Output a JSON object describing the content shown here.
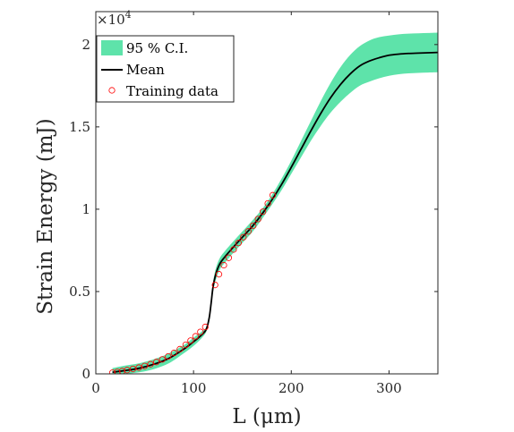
{
  "chart_data": {
    "type": "line",
    "xlabel": "L (μm)",
    "ylabel": "Strain Energy (mJ)",
    "xlim": [
      0,
      350
    ],
    "ylim": [
      0,
      22000
    ],
    "x_ticks": [
      0,
      100,
      200,
      300
    ],
    "x_tick_labels": [
      "0",
      "100",
      "200",
      "300"
    ],
    "y_ticks": [
      0,
      5000,
      10000,
      15000,
      20000
    ],
    "y_tick_labels": [
      "0",
      "0.5",
      "1",
      "1.5",
      "2"
    ],
    "y_exponent_label": "×10",
    "y_exponent_power": "4",
    "grid": false,
    "legend_position": "top-left",
    "legend": {
      "ci_label": "95 % C.I.",
      "mean_label": "Mean",
      "training_label": "Training data"
    },
    "colors": {
      "ci_fill": "#5ee3aa",
      "mean_line": "#000000",
      "training_marker": "#ff0000",
      "axis": "#262626"
    },
    "series": [
      {
        "name": "Mean",
        "x": [
          17,
          30,
          45,
          60,
          75,
          90,
          100,
          108,
          113,
          116,
          118,
          120,
          123,
          127,
          132,
          140,
          150,
          160,
          170,
          180,
          190,
          200,
          210,
          220,
          230,
          240,
          250,
          260,
          270,
          280,
          290,
          300,
          310,
          320,
          330,
          340,
          350
        ],
        "y": [
          100,
          200,
          350,
          600,
          950,
          1500,
          1950,
          2350,
          2700,
          3400,
          4300,
          5300,
          6100,
          6700,
          7100,
          7650,
          8300,
          8950,
          9700,
          10550,
          11500,
          12550,
          13650,
          14750,
          15800,
          16750,
          17550,
          18200,
          18700,
          19000,
          19200,
          19350,
          19420,
          19460,
          19480,
          19500,
          19520
        ]
      },
      {
        "name": "95 % C.I.",
        "x": [
          17,
          30,
          45,
          60,
          75,
          90,
          100,
          108,
          113,
          116,
          118,
          120,
          123,
          127,
          132,
          140,
          150,
          160,
          170,
          180,
          190,
          200,
          210,
          220,
          230,
          240,
          250,
          260,
          270,
          280,
          290,
          300,
          310,
          320,
          330,
          340,
          350
        ],
        "upper": [
          350,
          500,
          650,
          900,
          1250,
          1750,
          2200,
          2550,
          2850,
          3600,
          4600,
          5600,
          6450,
          7050,
          7450,
          8000,
          8650,
          9300,
          10000,
          10850,
          11850,
          12950,
          14150,
          15350,
          16550,
          17650,
          18600,
          19350,
          19900,
          20250,
          20450,
          20550,
          20620,
          20660,
          20680,
          20700,
          20720
        ],
        "lower": [
          -50,
          0,
          100,
          300,
          650,
          1250,
          1700,
          2150,
          2550,
          3200,
          4050,
          5000,
          5750,
          6350,
          6750,
          7300,
          7950,
          8600,
          9400,
          10250,
          11150,
          12150,
          13150,
          14150,
          15050,
          15850,
          16500,
          17050,
          17500,
          17750,
          17950,
          18100,
          18200,
          18250,
          18280,
          18300,
          18320
        ]
      },
      {
        "name": "Training data",
        "x": [
          17,
          22,
          27,
          32,
          38,
          44,
          50,
          56,
          62,
          68,
          74,
          80,
          86,
          92,
          97,
          102,
          107,
          112,
          122,
          126,
          131,
          136,
          141,
          146,
          151,
          156,
          161,
          166,
          171,
          176,
          181
        ],
        "y": [
          70,
          120,
          170,
          230,
          300,
          380,
          480,
          590,
          720,
          880,
          1060,
          1270,
          1500,
          1770,
          2020,
          2280,
          2550,
          2850,
          5400,
          6050,
          6600,
          7050,
          7550,
          7950,
          8300,
          8650,
          9000,
          9400,
          9850,
          10350,
          10850
        ]
      }
    ]
  }
}
